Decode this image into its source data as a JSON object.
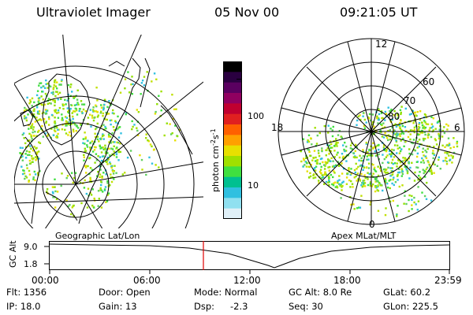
{
  "header": {
    "title": "Ultraviolet Imager",
    "date": "05 Nov 00",
    "time": "09:21:05 UT"
  },
  "colorbar": {
    "label": "photon cm-2s-1",
    "label_main": "photon cm",
    "sup1": "-2",
    "mid": "s",
    "sup2": "-1",
    "ticks": [
      "100",
      "10"
    ],
    "colors": [
      "#000000",
      "#2a0040",
      "#5a0060",
      "#900060",
      "#c00030",
      "#e02020",
      "#ff6000",
      "#ffa000",
      "#e8e000",
      "#a0e000",
      "#40e040",
      "#00c090",
      "#30c0e0",
      "#90e0f0",
      "#e0f0f8"
    ]
  },
  "left_panel": {
    "label": "Geographic Lat/Lon"
  },
  "right_panel": {
    "label": "Apex MLat/MLT",
    "mlt_labels": [
      "12",
      "18",
      "6",
      "0"
    ],
    "lat_labels": [
      "60",
      "70",
      "80"
    ]
  },
  "altitude_plot": {
    "ylabel": "GC Alt",
    "yticks": [
      "9.0",
      "1.8"
    ],
    "xticks": [
      "00:00",
      "06:00",
      "12:00",
      "18:00",
      "23:59"
    ],
    "marker_color": "#e00000"
  },
  "info": {
    "flt": "Flt: 1356",
    "ip": "IP: 18.0",
    "door": "Door: Open",
    "gain": "Gain: 13",
    "mode": "Mode: Normal",
    "dsp": "Dsp:",
    "dsp_value": "-2.3",
    "gc_alt": "GC Alt: 8.0 Re",
    "seq": "Seq: 30",
    "glat": "GLat:  60.2",
    "glon": "GLon: 225.5"
  }
}
